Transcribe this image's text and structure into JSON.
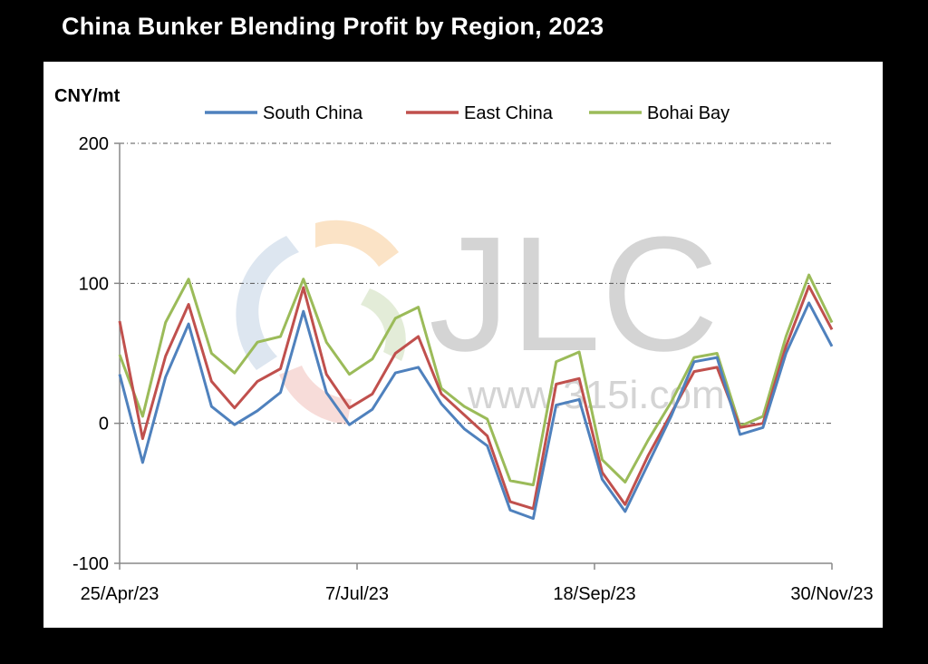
{
  "chart_data": {
    "type": "line",
    "title": "China Bunker Blending Profit by Region, 2023",
    "ylabel": "CNY/mt",
    "xlabel": "",
    "ylim": [
      -100,
      200
    ],
    "yticks": [
      "200",
      "100",
      "0",
      "-100"
    ],
    "xticks": [
      "25/Apr/23",
      "7/Jul/23",
      "18/Sep/23",
      "30/Nov/23"
    ],
    "grid": true,
    "legend": "top",
    "series": [
      {
        "name": "South China",
        "color": "#4f81bd",
        "values": [
          35,
          -28,
          33,
          71,
          12,
          -1,
          9,
          22,
          80,
          22,
          -1,
          10,
          36,
          40,
          14,
          -4,
          -16,
          -62,
          -68,
          13,
          17,
          -40,
          -63,
          -29,
          5,
          44,
          47,
          -8,
          -3,
          50,
          86,
          55
        ]
      },
      {
        "name": "East China",
        "color": "#c0504d",
        "values": [
          73,
          -11,
          48,
          85,
          30,
          11,
          30,
          39,
          97,
          35,
          11,
          21,
          50,
          62,
          21,
          6,
          -9,
          -56,
          -61,
          28,
          32,
          -35,
          -58,
          -23,
          7,
          37,
          40,
          -3,
          0,
          55,
          98,
          67
        ]
      },
      {
        "name": "Bohai Bay",
        "color": "#9bbb59",
        "values": [
          49,
          5,
          72,
          103,
          50,
          36,
          58,
          62,
          103,
          58,
          35,
          46,
          75,
          83,
          25,
          12,
          3,
          -41,
          -44,
          44,
          51,
          -26,
          -42,
          -12,
          15,
          47,
          50,
          -2,
          5,
          62,
          106,
          72
        ]
      }
    ]
  },
  "watermark": {
    "brand": "JLC",
    "url": "www.315i.com"
  }
}
